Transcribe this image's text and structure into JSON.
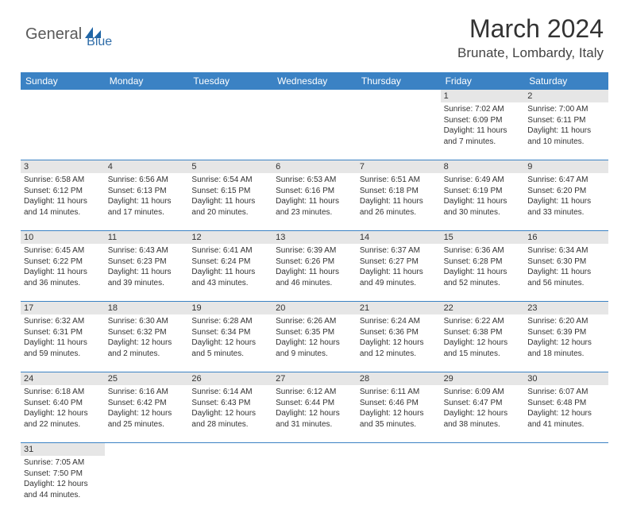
{
  "logo": {
    "part1": "General",
    "part2": "Blue"
  },
  "title": "March 2024",
  "location": "Brunate, Lombardy, Italy",
  "colors": {
    "header_bg": "#3b82c4",
    "header_text": "#ffffff",
    "daynum_bg": "#e6e6e6",
    "border": "#3b82c4",
    "body_text": "#333333",
    "logo_gray": "#5a5a5a",
    "logo_blue": "#2e6ca8"
  },
  "typography": {
    "title_fontsize": 32,
    "location_fontsize": 17,
    "dayname_fontsize": 12,
    "daynum_fontsize": 11,
    "cell_fontsize": 10
  },
  "daynames": [
    "Sunday",
    "Monday",
    "Tuesday",
    "Wednesday",
    "Thursday",
    "Friday",
    "Saturday"
  ],
  "weeks": [
    [
      null,
      null,
      null,
      null,
      null,
      {
        "n": "1",
        "sunrise": "Sunrise: 7:02 AM",
        "sunset": "Sunset: 6:09 PM",
        "day1": "Daylight: 11 hours",
        "day2": "and 7 minutes."
      },
      {
        "n": "2",
        "sunrise": "Sunrise: 7:00 AM",
        "sunset": "Sunset: 6:11 PM",
        "day1": "Daylight: 11 hours",
        "day2": "and 10 minutes."
      }
    ],
    [
      {
        "n": "3",
        "sunrise": "Sunrise: 6:58 AM",
        "sunset": "Sunset: 6:12 PM",
        "day1": "Daylight: 11 hours",
        "day2": "and 14 minutes."
      },
      {
        "n": "4",
        "sunrise": "Sunrise: 6:56 AM",
        "sunset": "Sunset: 6:13 PM",
        "day1": "Daylight: 11 hours",
        "day2": "and 17 minutes."
      },
      {
        "n": "5",
        "sunrise": "Sunrise: 6:54 AM",
        "sunset": "Sunset: 6:15 PM",
        "day1": "Daylight: 11 hours",
        "day2": "and 20 minutes."
      },
      {
        "n": "6",
        "sunrise": "Sunrise: 6:53 AM",
        "sunset": "Sunset: 6:16 PM",
        "day1": "Daylight: 11 hours",
        "day2": "and 23 minutes."
      },
      {
        "n": "7",
        "sunrise": "Sunrise: 6:51 AM",
        "sunset": "Sunset: 6:18 PM",
        "day1": "Daylight: 11 hours",
        "day2": "and 26 minutes."
      },
      {
        "n": "8",
        "sunrise": "Sunrise: 6:49 AM",
        "sunset": "Sunset: 6:19 PM",
        "day1": "Daylight: 11 hours",
        "day2": "and 30 minutes."
      },
      {
        "n": "9",
        "sunrise": "Sunrise: 6:47 AM",
        "sunset": "Sunset: 6:20 PM",
        "day1": "Daylight: 11 hours",
        "day2": "and 33 minutes."
      }
    ],
    [
      {
        "n": "10",
        "sunrise": "Sunrise: 6:45 AM",
        "sunset": "Sunset: 6:22 PM",
        "day1": "Daylight: 11 hours",
        "day2": "and 36 minutes."
      },
      {
        "n": "11",
        "sunrise": "Sunrise: 6:43 AM",
        "sunset": "Sunset: 6:23 PM",
        "day1": "Daylight: 11 hours",
        "day2": "and 39 minutes."
      },
      {
        "n": "12",
        "sunrise": "Sunrise: 6:41 AM",
        "sunset": "Sunset: 6:24 PM",
        "day1": "Daylight: 11 hours",
        "day2": "and 43 minutes."
      },
      {
        "n": "13",
        "sunrise": "Sunrise: 6:39 AM",
        "sunset": "Sunset: 6:26 PM",
        "day1": "Daylight: 11 hours",
        "day2": "and 46 minutes."
      },
      {
        "n": "14",
        "sunrise": "Sunrise: 6:37 AM",
        "sunset": "Sunset: 6:27 PM",
        "day1": "Daylight: 11 hours",
        "day2": "and 49 minutes."
      },
      {
        "n": "15",
        "sunrise": "Sunrise: 6:36 AM",
        "sunset": "Sunset: 6:28 PM",
        "day1": "Daylight: 11 hours",
        "day2": "and 52 minutes."
      },
      {
        "n": "16",
        "sunrise": "Sunrise: 6:34 AM",
        "sunset": "Sunset: 6:30 PM",
        "day1": "Daylight: 11 hours",
        "day2": "and 56 minutes."
      }
    ],
    [
      {
        "n": "17",
        "sunrise": "Sunrise: 6:32 AM",
        "sunset": "Sunset: 6:31 PM",
        "day1": "Daylight: 11 hours",
        "day2": "and 59 minutes."
      },
      {
        "n": "18",
        "sunrise": "Sunrise: 6:30 AM",
        "sunset": "Sunset: 6:32 PM",
        "day1": "Daylight: 12 hours",
        "day2": "and 2 minutes."
      },
      {
        "n": "19",
        "sunrise": "Sunrise: 6:28 AM",
        "sunset": "Sunset: 6:34 PM",
        "day1": "Daylight: 12 hours",
        "day2": "and 5 minutes."
      },
      {
        "n": "20",
        "sunrise": "Sunrise: 6:26 AM",
        "sunset": "Sunset: 6:35 PM",
        "day1": "Daylight: 12 hours",
        "day2": "and 9 minutes."
      },
      {
        "n": "21",
        "sunrise": "Sunrise: 6:24 AM",
        "sunset": "Sunset: 6:36 PM",
        "day1": "Daylight: 12 hours",
        "day2": "and 12 minutes."
      },
      {
        "n": "22",
        "sunrise": "Sunrise: 6:22 AM",
        "sunset": "Sunset: 6:38 PM",
        "day1": "Daylight: 12 hours",
        "day2": "and 15 minutes."
      },
      {
        "n": "23",
        "sunrise": "Sunrise: 6:20 AM",
        "sunset": "Sunset: 6:39 PM",
        "day1": "Daylight: 12 hours",
        "day2": "and 18 minutes."
      }
    ],
    [
      {
        "n": "24",
        "sunrise": "Sunrise: 6:18 AM",
        "sunset": "Sunset: 6:40 PM",
        "day1": "Daylight: 12 hours",
        "day2": "and 22 minutes."
      },
      {
        "n": "25",
        "sunrise": "Sunrise: 6:16 AM",
        "sunset": "Sunset: 6:42 PM",
        "day1": "Daylight: 12 hours",
        "day2": "and 25 minutes."
      },
      {
        "n": "26",
        "sunrise": "Sunrise: 6:14 AM",
        "sunset": "Sunset: 6:43 PM",
        "day1": "Daylight: 12 hours",
        "day2": "and 28 minutes."
      },
      {
        "n": "27",
        "sunrise": "Sunrise: 6:12 AM",
        "sunset": "Sunset: 6:44 PM",
        "day1": "Daylight: 12 hours",
        "day2": "and 31 minutes."
      },
      {
        "n": "28",
        "sunrise": "Sunrise: 6:11 AM",
        "sunset": "Sunset: 6:46 PM",
        "day1": "Daylight: 12 hours",
        "day2": "and 35 minutes."
      },
      {
        "n": "29",
        "sunrise": "Sunrise: 6:09 AM",
        "sunset": "Sunset: 6:47 PM",
        "day1": "Daylight: 12 hours",
        "day2": "and 38 minutes."
      },
      {
        "n": "30",
        "sunrise": "Sunrise: 6:07 AM",
        "sunset": "Sunset: 6:48 PM",
        "day1": "Daylight: 12 hours",
        "day2": "and 41 minutes."
      }
    ],
    [
      {
        "n": "31",
        "sunrise": "Sunrise: 7:05 AM",
        "sunset": "Sunset: 7:50 PM",
        "day1": "Daylight: 12 hours",
        "day2": "and 44 minutes."
      },
      null,
      null,
      null,
      null,
      null,
      null
    ]
  ]
}
